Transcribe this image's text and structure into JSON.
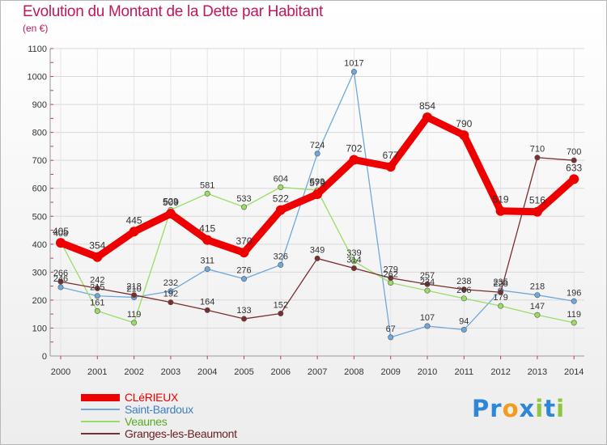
{
  "chart_data": {
    "type": "line",
    "title": "Evolution du Montant de la Dette par Habitant",
    "subtitle": "(en €)",
    "x": [
      "2000",
      "2001",
      "2002",
      "2003",
      "2004",
      "2005",
      "2006",
      "2007",
      "2008",
      "2009",
      "2010",
      "2011",
      "2012",
      "2013",
      "2014"
    ],
    "ylim": [
      0,
      1100
    ],
    "yticks": [
      0,
      100,
      200,
      300,
      400,
      500,
      600,
      700,
      800,
      900,
      1000,
      1100
    ],
    "grid": true,
    "legend_position": "bottom-left",
    "series": [
      {
        "name": "CLéRIEUX",
        "color": "#ee0000",
        "bold": true,
        "values": [
          405,
          354,
          445,
          509,
          415,
          370,
          522,
          579,
          702,
          677,
          854,
          790,
          519,
          516,
          633
        ]
      },
      {
        "name": "Saint-Bardoux",
        "color": "#6fa8dc",
        "values": [
          246,
          215,
          210,
          232,
          311,
          276,
          326,
          724,
          1017,
          67,
          107,
          94,
          235,
          218,
          196
        ]
      },
      {
        "name": "Veaunes",
        "color": "#99dd66",
        "values": [
          408,
          161,
          119,
          523,
          581,
          533,
          604,
          593,
          339,
          262,
          234,
          206,
          179,
          147,
          119
        ]
      },
      {
        "name": "Granges-les-Beaumont",
        "color": "#7a2e2e",
        "values": [
          266,
          242,
          218,
          192,
          164,
          133,
          152,
          349,
          314,
          279,
          257,
          238,
          228,
          710,
          700
        ]
      }
    ]
  },
  "logo": {
    "text": "Proxiti",
    "letters": [
      "P",
      "r",
      "o",
      "x",
      "i",
      "t",
      "i"
    ],
    "colors": [
      "#2e86d9",
      "#2e86d9",
      "#f29b1c",
      "#2e86d9",
      "#8dc63f",
      "#2e86d9",
      "#8dc63f"
    ]
  }
}
